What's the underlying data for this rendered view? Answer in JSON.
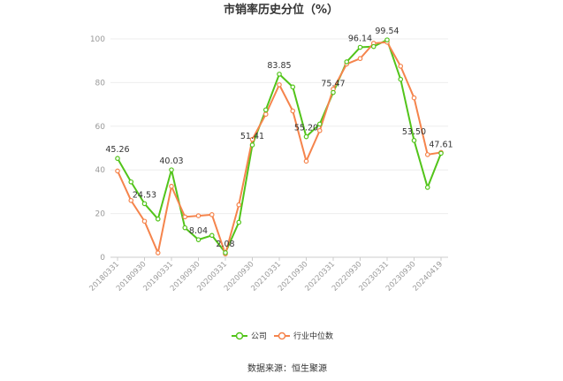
{
  "chart_data": {
    "type": "line",
    "title": "市销率历史分位（%）",
    "source": "数据来源：恒生聚源",
    "x": [
      "20180331",
      "",
      "20180930",
      "",
      "20190331",
      "",
      "20190930",
      "",
      "20200331",
      "",
      "20200930",
      "",
      "20210331",
      "",
      "20210930",
      "",
      "20220331",
      "",
      "20220930",
      "",
      "20230331",
      "",
      "20230930",
      "",
      "20240419"
    ],
    "xticks": [
      "20180331",
      "20180930",
      "20190331",
      "20190930",
      "20200331",
      "20200930",
      "20210331",
      "20210930",
      "20220331",
      "20220930",
      "20230331",
      "20230930",
      "20240419"
    ],
    "ylim": [
      0,
      100
    ],
    "yticks": [
      0,
      20,
      40,
      60,
      80,
      100
    ],
    "grid": true,
    "legend_position": "bottom",
    "series": [
      {
        "name": "公司",
        "color": "#52c41a",
        "values": [
          45.26,
          34.5,
          24.53,
          17.5,
          40.03,
          13.5,
          8.04,
          10.0,
          2.08,
          16.0,
          51.41,
          67.5,
          83.85,
          78.0,
          55.2,
          61.0,
          75.47,
          89.5,
          96.14,
          96.5,
          99.54,
          81.5,
          53.5,
          32.0,
          47.61
        ]
      },
      {
        "name": "行业中位数",
        "color": "#f5844c",
        "values": [
          39.5,
          26.0,
          16.5,
          2.0,
          32.5,
          18.5,
          19.0,
          19.5,
          1.5,
          24.0,
          54.0,
          65.5,
          79.0,
          67.0,
          44.0,
          58.0,
          77.0,
          88.5,
          91.0,
          98.0,
          98.5,
          87.5,
          73.0,
          47.0,
          48.0
        ]
      }
    ],
    "data_labels": [
      {
        "series": 0,
        "index": 0,
        "text": "45.26"
      },
      {
        "series": 0,
        "index": 2,
        "text": "24.53"
      },
      {
        "series": 0,
        "index": 4,
        "text": "40.03"
      },
      {
        "series": 0,
        "index": 6,
        "text": "8.04"
      },
      {
        "series": 0,
        "index": 8,
        "text": "2.08"
      },
      {
        "series": 0,
        "index": 10,
        "text": "51.41"
      },
      {
        "series": 0,
        "index": 12,
        "text": "83.85"
      },
      {
        "series": 0,
        "index": 14,
        "text": "55.20"
      },
      {
        "series": 0,
        "index": 16,
        "text": "75.47"
      },
      {
        "series": 0,
        "index": 18,
        "text": "96.14"
      },
      {
        "series": 0,
        "index": 20,
        "text": "99.54"
      },
      {
        "series": 0,
        "index": 22,
        "text": "53.50"
      },
      {
        "series": 0,
        "index": 24,
        "text": "47.61"
      }
    ]
  }
}
